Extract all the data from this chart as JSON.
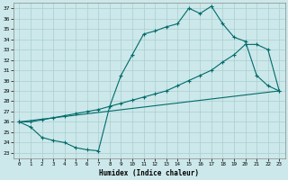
{
  "xlabel": "Humidex (Indice chaleur)",
  "bg_color": "#cce8ea",
  "grid_color": "#aacdd0",
  "line_color": "#006b6b",
  "xlim": [
    -0.5,
    23.5
  ],
  "ylim": [
    22.5,
    37.5
  ],
  "xticks": [
    0,
    1,
    2,
    3,
    4,
    5,
    6,
    7,
    8,
    9,
    10,
    11,
    12,
    13,
    14,
    15,
    16,
    17,
    18,
    19,
    20,
    21,
    22,
    23
  ],
  "yticks": [
    23,
    24,
    25,
    26,
    27,
    28,
    29,
    30,
    31,
    32,
    33,
    34,
    35,
    36,
    37
  ],
  "curve1_x": [
    0,
    1,
    2,
    3,
    4,
    5,
    6,
    7,
    8,
    9,
    10,
    11,
    12,
    13,
    14,
    15,
    16,
    17,
    18,
    19,
    20,
    21,
    22,
    23
  ],
  "curve1_y": [
    26,
    25.5,
    24.5,
    24.2,
    24.0,
    23.5,
    23.3,
    23.2,
    27.5,
    30.5,
    32.5,
    34.5,
    34.8,
    35.2,
    35.5,
    37.0,
    36.5,
    37.2,
    35.5,
    34.2,
    33.8,
    30.5,
    29.5,
    29.0
  ],
  "curve2_x": [
    0,
    1,
    2,
    3,
    4,
    5,
    6,
    7,
    8,
    9,
    10,
    11,
    12,
    13,
    14,
    15,
    16,
    17,
    18,
    19,
    20,
    21,
    22,
    23
  ],
  "curve2_y": [
    26,
    26,
    26.2,
    26.4,
    26.6,
    26.8,
    27,
    27.2,
    27.5,
    27.8,
    28.1,
    28.4,
    28.7,
    29.0,
    29.5,
    30.0,
    30.5,
    31.0,
    31.8,
    32.5,
    33.5,
    33.5,
    33.0,
    29.0
  ],
  "curve3_x": [
    0,
    23
  ],
  "curve3_y": [
    26.0,
    29.0
  ]
}
